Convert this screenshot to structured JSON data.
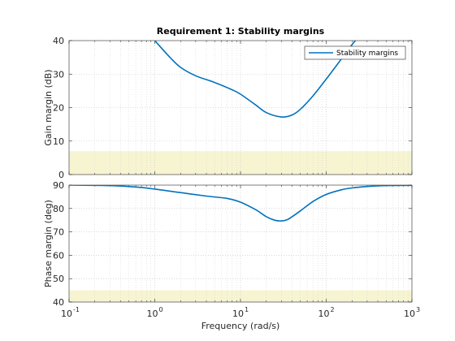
{
  "chart_data": [
    {
      "type": "line",
      "title": "Requirement 1: Stability margins",
      "xlabel": "",
      "ylabel": "Gain margin (dB)",
      "xscale": "log",
      "xlim": [
        0.1,
        1000
      ],
      "ylim": [
        0,
        40
      ],
      "yticks": [
        "0",
        "10",
        "20",
        "30",
        "40"
      ],
      "grid": true,
      "legend": {
        "placement": "top-right",
        "entries": [
          "Stability margins"
        ]
      },
      "shaded_region": {
        "y": [
          0,
          7
        ],
        "color": "#f7f4d2"
      },
      "series": [
        {
          "name": "Stability margins",
          "color": "#0072bd",
          "x": [
            1.0,
            1.5,
            2,
            3,
            5,
            8,
            10,
            15,
            20,
            30,
            40,
            50,
            70,
            100,
            150,
            200,
            220
          ],
          "y": [
            40,
            35,
            32,
            29.5,
            27.5,
            25.3,
            24,
            20.8,
            18.5,
            17.2,
            17.8,
            19.5,
            23.5,
            28.5,
            34.5,
            38.8,
            40
          ]
        }
      ]
    },
    {
      "type": "line",
      "title": "",
      "xlabel": "Frequency  (rad/s)",
      "ylabel": "Phase margin (deg)",
      "xscale": "log",
      "xlim": [
        0.1,
        1000
      ],
      "ylim": [
        40,
        90
      ],
      "yticks": [
        "40",
        "50",
        "60",
        "70",
        "80",
        "90"
      ],
      "grid": true,
      "shaded_region": {
        "y": [
          40,
          45
        ],
        "color": "#f7f4d2"
      },
      "series": [
        {
          "name": "Stability margins",
          "color": "#0072bd",
          "x": [
            0.1,
            0.3,
            0.6,
            1,
            2,
            4,
            7,
            10,
            15,
            20,
            25,
            30,
            35,
            40,
            50,
            70,
            100,
            150,
            200,
            300,
            500,
            1000
          ],
          "y": [
            90,
            89.8,
            89.2,
            88.3,
            86.8,
            85.3,
            84.3,
            82.7,
            79.5,
            76.5,
            75,
            74.7,
            75.2,
            76.5,
            79,
            83,
            86,
            88,
            88.8,
            89.4,
            89.8,
            89.9
          ]
        }
      ]
    }
  ],
  "x_tick_labels": [
    "10",
    "10",
    "10",
    "10",
    "10"
  ],
  "x_tick_exponents": [
    "-1",
    "0",
    "1",
    "2",
    "3"
  ]
}
